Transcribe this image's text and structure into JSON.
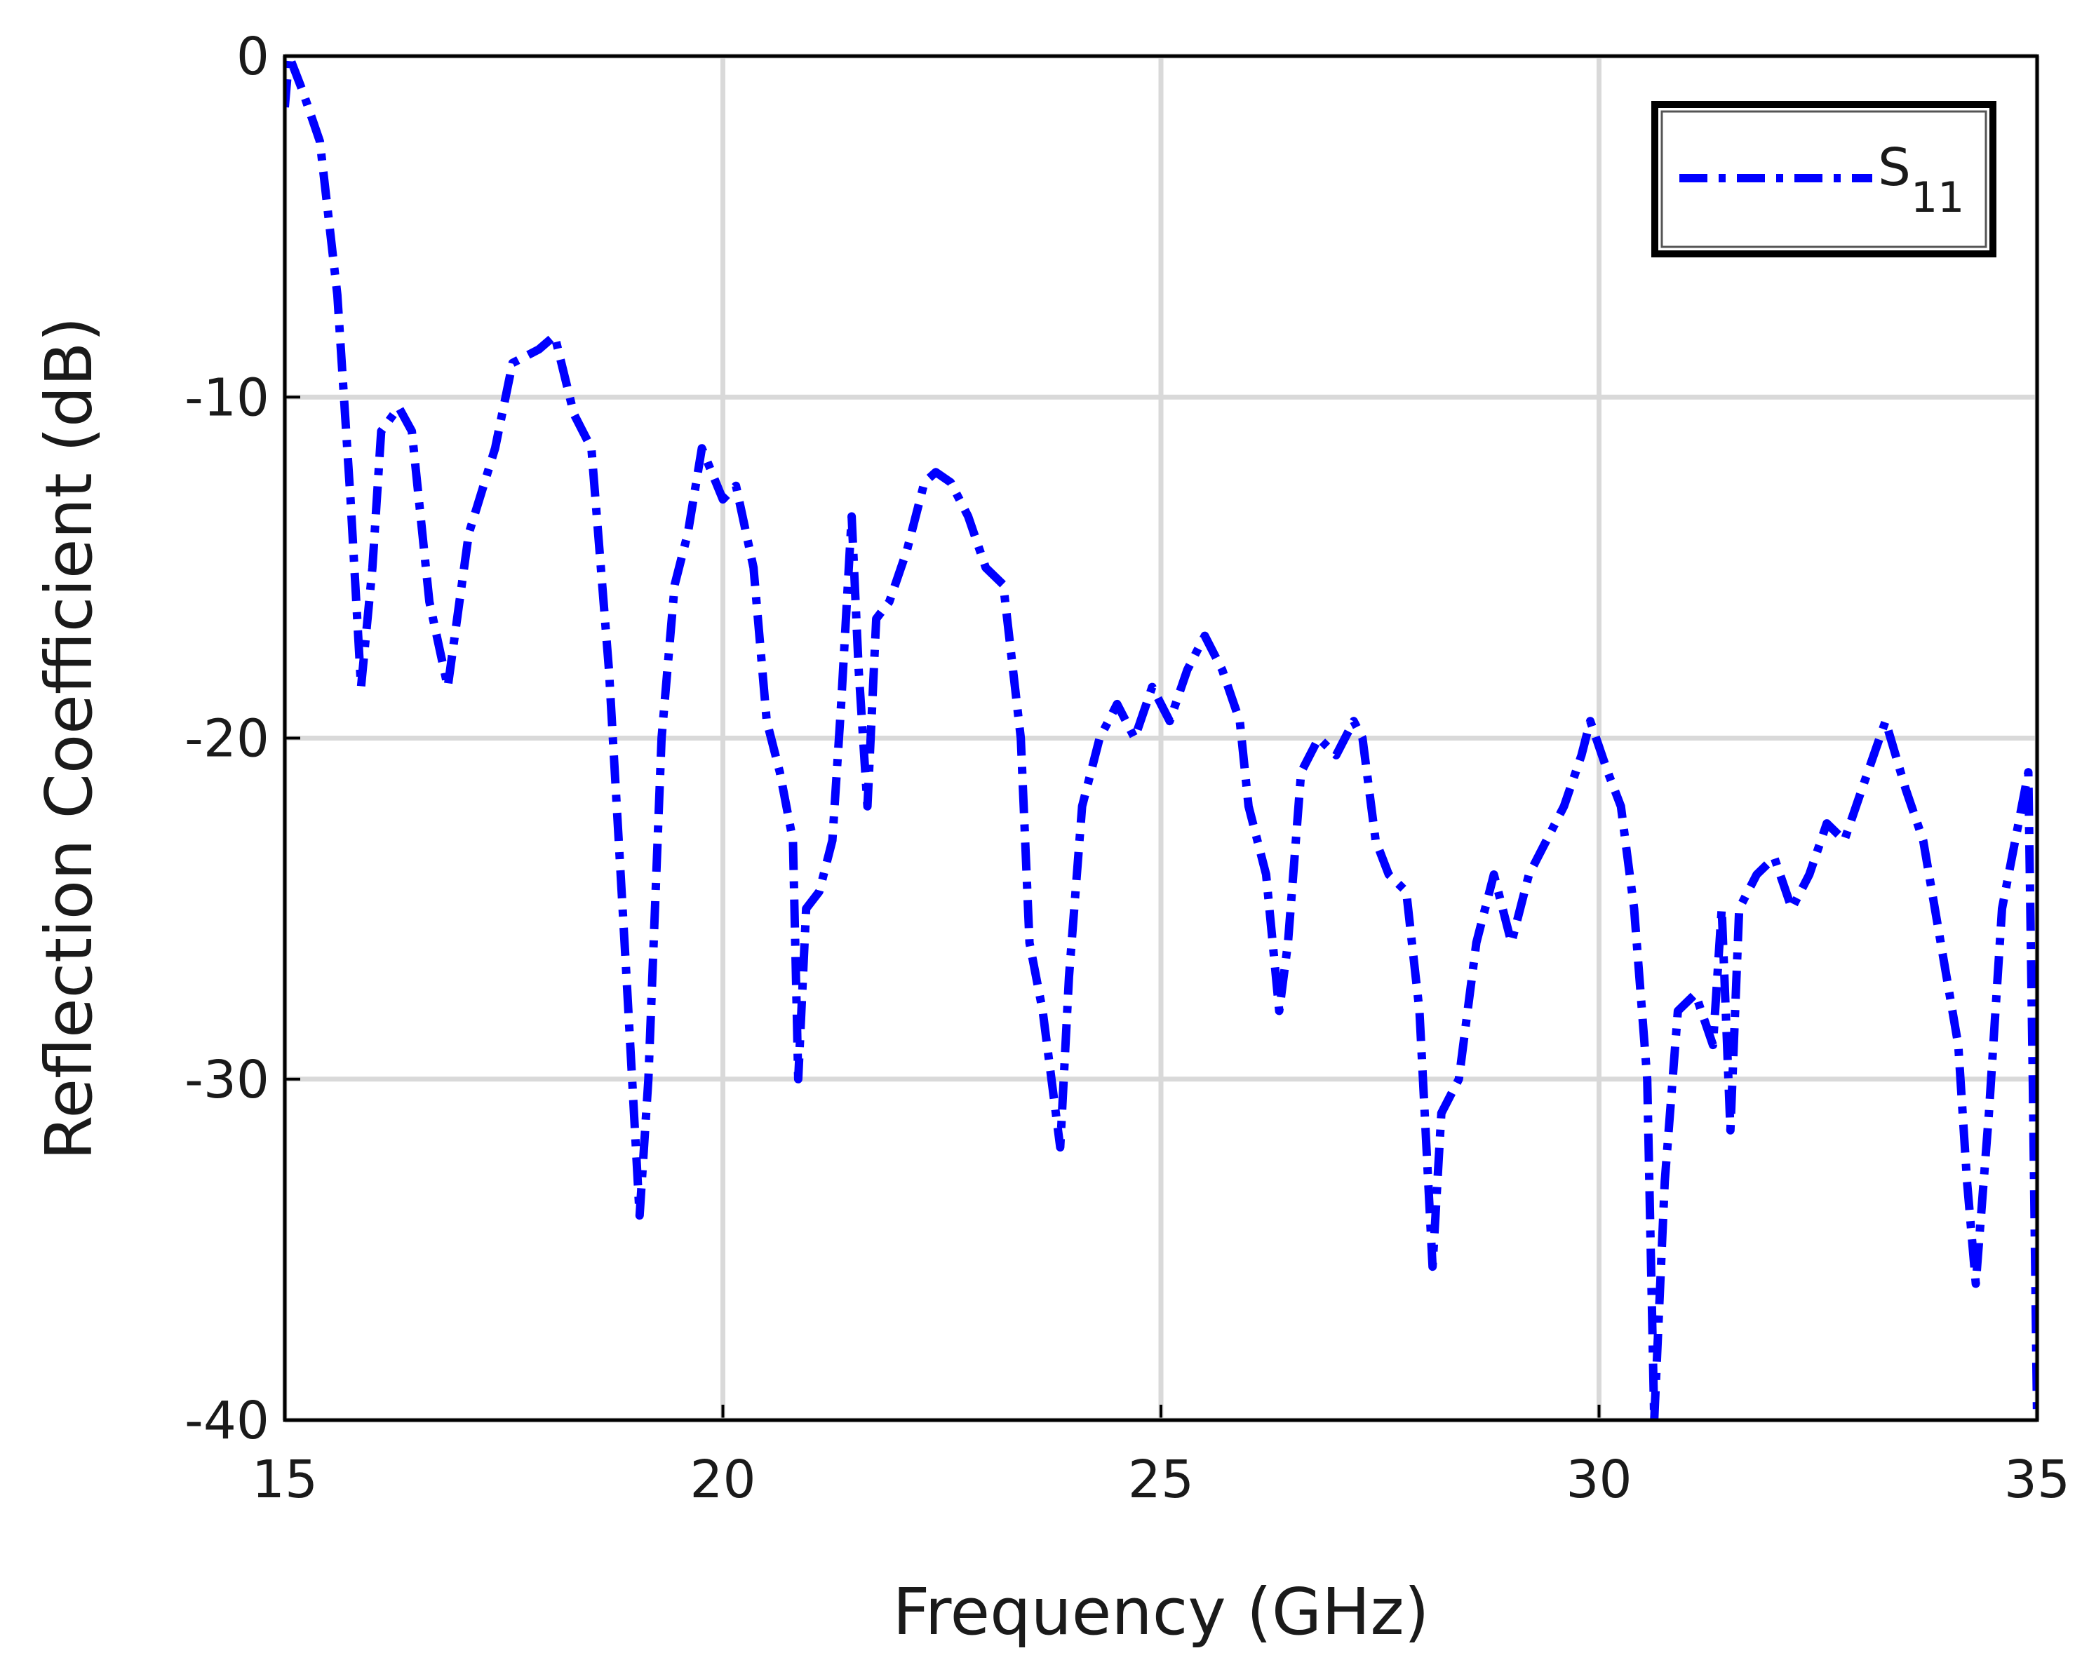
{
  "chart_data": {
    "type": "line",
    "xlabel": "Frequency (GHz)",
    "ylabel": "Reflection Coefficient (dB)",
    "xlim": [
      15,
      35
    ],
    "ylim": [
      -40,
      0
    ],
    "xticks": [
      15,
      20,
      25,
      30,
      35
    ],
    "yticks": [
      -40,
      -30,
      -20,
      -10,
      0
    ],
    "grid": true,
    "legend": "upper right",
    "x": [
      15.0,
      15.05,
      15.2,
      15.4,
      15.6,
      15.75,
      15.87,
      16.0,
      16.1,
      16.3,
      16.45,
      16.65,
      16.86,
      17.1,
      17.4,
      17.6,
      17.9,
      18.08,
      18.3,
      18.5,
      18.7,
      18.9,
      19.05,
      19.15,
      19.3,
      19.45,
      19.6,
      19.76,
      20.0,
      20.15,
      20.35,
      20.5,
      20.65,
      20.8,
      20.86,
      20.95,
      21.1,
      21.25,
      21.35,
      21.47,
      21.55,
      21.65,
      21.75,
      21.9,
      22.1,
      22.3,
      22.43,
      22.6,
      22.8,
      23.0,
      23.2,
      23.4,
      23.5,
      23.65,
      23.75,
      23.85,
      23.95,
      24.1,
      24.3,
      24.5,
      24.7,
      24.9,
      25.1,
      25.3,
      25.5,
      25.7,
      25.9,
      26.0,
      26.2,
      26.35,
      26.45,
      26.6,
      26.8,
      27.0,
      27.2,
      27.3,
      27.45,
      27.6,
      27.8,
      27.95,
      28.1,
      28.2,
      28.4,
      28.6,
      28.8,
      29.0,
      29.2,
      29.4,
      29.6,
      29.8,
      29.9,
      30.1,
      30.25,
      30.4,
      30.55,
      30.63,
      30.75,
      30.9,
      31.1,
      31.3,
      31.4,
      31.5,
      31.6,
      31.8,
      32.0,
      32.2,
      32.4,
      32.6,
      32.8,
      33.0,
      33.27,
      33.5,
      33.7,
      33.9,
      34.1,
      34.2,
      34.3,
      34.45,
      34.6,
      34.75,
      34.9,
      34.95,
      35.0
    ],
    "series": [
      {
        "name": "S11",
        "color": "#0000ff",
        "values": [
          -1.5,
          0,
          -1,
          -2.5,
          -7,
          -13,
          -18.5,
          -15,
          -11,
          -10.3,
          -11,
          -16,
          -18.5,
          -14,
          -11.5,
          -9,
          -8.6,
          -8.2,
          -10.5,
          -11.5,
          -18,
          -27,
          -34,
          -30,
          -20,
          -15.5,
          -14,
          -11.5,
          -13,
          -12.6,
          -15,
          -19.5,
          -21,
          -23,
          -30,
          -25,
          -24.5,
          -23,
          -19,
          -13.5,
          -18,
          -22,
          -16.5,
          -16,
          -14.5,
          -12.5,
          -12.2,
          -12.5,
          -13.5,
          -15,
          -15.5,
          -20,
          -26,
          -28,
          -30,
          -32,
          -27,
          -22,
          -20,
          -19,
          -20,
          -18.5,
          -19.5,
          -18,
          -17,
          -18,
          -19.5,
          -22,
          -24,
          -28,
          -26,
          -21,
          -20,
          -20.5,
          -19.5,
          -20,
          -23,
          -24,
          -24.5,
          -28,
          -35.5,
          -31,
          -30,
          -26,
          -24,
          -26,
          -24,
          -23,
          -22,
          -20.5,
          -19.5,
          -21,
          -22,
          -25,
          -30,
          -40,
          -33,
          -28,
          -27.5,
          -29,
          -25,
          -31.5,
          -25,
          -24,
          -23.5,
          -25,
          -24,
          -22.5,
          -23,
          -21.5,
          -19.5,
          -21.5,
          -23,
          -26,
          -29,
          -33,
          -36,
          -31,
          -25,
          -23,
          -21,
          -30,
          -40
        ]
      }
    ]
  }
}
